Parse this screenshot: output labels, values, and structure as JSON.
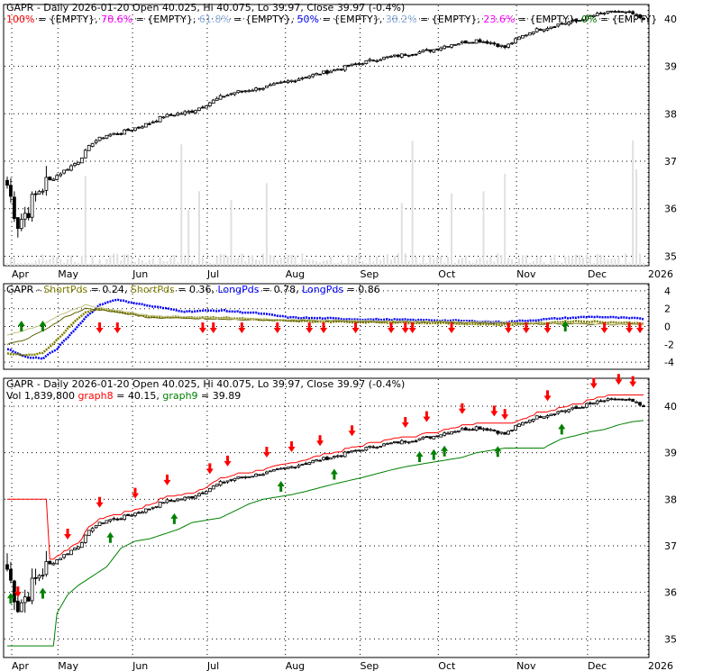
{
  "chart_data": [
    {
      "type": "candlestick",
      "panel": "price",
      "title_parts": [
        {
          "text": "GAPR - Daily 2026-01-20 Open 40.025, Hi 40.075, Lo 39.97, Close 39.97 (-0.4%)",
          "color": "#000000"
        }
      ],
      "fib_parts": [
        {
          "text": "100%",
          "color": "#ff0000"
        },
        {
          "text": " = {EMPTY}, ",
          "color": "#000000"
        },
        {
          "text": "78.6%",
          "color": "#ff00ff"
        },
        {
          "text": " = {EMPTY}, ",
          "color": "#000000"
        },
        {
          "text": "61.8%",
          "color": "#88aadd"
        },
        {
          "text": " = {EMPTY}, ",
          "color": "#000000"
        },
        {
          "text": "50%",
          "color": "#0000ff"
        },
        {
          "text": " = {EMPTY}, ",
          "color": "#000000"
        },
        {
          "text": "38.2%",
          "color": "#88aadd"
        },
        {
          "text": " = {EMPTY}, ",
          "color": "#000000"
        },
        {
          "text": "23.6%",
          "color": "#ff00ff"
        },
        {
          "text": " = {EMPTY}, ",
          "color": "#000000"
        },
        {
          "text": "0%",
          "color": "#008000"
        },
        {
          "text": " = {EMPTY}",
          "color": "#000000"
        }
      ],
      "yticks": [
        "35",
        "36",
        "37",
        "38",
        "39",
        "40"
      ],
      "ylim": [
        34.8,
        40.3
      ],
      "xticks": [
        "Apr",
        "May",
        "Jun",
        "Jul",
        "Aug",
        "Sep",
        "Oct",
        "Nov",
        "Dec",
        "2026"
      ],
      "close_keypoints": [
        [
          0,
          36.5
        ],
        [
          3,
          35.7
        ],
        [
          6,
          36.0
        ],
        [
          9,
          36.4
        ],
        [
          12,
          36.6
        ],
        [
          16,
          36.8
        ],
        [
          20,
          37.0
        ],
        [
          24,
          37.4
        ],
        [
          28,
          37.55
        ],
        [
          32,
          37.6
        ],
        [
          36,
          37.7
        ],
        [
          40,
          37.8
        ],
        [
          44,
          37.95
        ],
        [
          48,
          38.0
        ],
        [
          52,
          38.05
        ],
        [
          56,
          38.2
        ],
        [
          60,
          38.35
        ],
        [
          64,
          38.45
        ],
        [
          68,
          38.5
        ],
        [
          72,
          38.55
        ],
        [
          76,
          38.62
        ],
        [
          80,
          38.7
        ],
        [
          84,
          38.78
        ],
        [
          88,
          38.85
        ],
        [
          92,
          38.92
        ],
        [
          96,
          39.0
        ],
        [
          100,
          39.08
        ],
        [
          104,
          39.15
        ],
        [
          108,
          39.2
        ],
        [
          112,
          39.25
        ],
        [
          116,
          39.3
        ],
        [
          120,
          39.35
        ],
        [
          124,
          39.45
        ],
        [
          128,
          39.5
        ],
        [
          132,
          39.55
        ],
        [
          136,
          39.5
        ],
        [
          140,
          39.4
        ],
        [
          144,
          39.6
        ],
        [
          148,
          39.75
        ],
        [
          152,
          39.82
        ],
        [
          156,
          39.9
        ],
        [
          160,
          39.95
        ],
        [
          164,
          40.05
        ],
        [
          168,
          40.12
        ],
        [
          172,
          40.15
        ],
        [
          176,
          40.1
        ],
        [
          179,
          39.97
        ]
      ],
      "bars": 180
    },
    {
      "type": "line",
      "panel": "oscillator",
      "title_parts": [
        {
          "text": "GAPR",
          "color": "#000000"
        },
        {
          "text": " - ",
          "color": "#000000"
        },
        {
          "text": "ShortPds",
          "color": "#808000"
        },
        {
          "text": " = 0.24, ",
          "color": "#000000"
        },
        {
          "text": "ShortPds",
          "color": "#808000"
        },
        {
          "text": " = 0.36, ",
          "color": "#000000"
        },
        {
          "text": "LongPds",
          "color": "#0000ff"
        },
        {
          "text": " = 0.78, ",
          "color": "#000000"
        },
        {
          "text": "LongPds",
          "color": "#0000ff"
        },
        {
          "text": " = 0.86",
          "color": "#000000"
        }
      ],
      "yticks": [
        "-4",
        "-2",
        "0",
        "2",
        "4"
      ],
      "ylim": [
        -4.8,
        4.8
      ],
      "series": [
        {
          "values": [
            [
              0,
              -2.5
            ],
            [
              5,
              -3.4
            ],
            [
              10,
              -3.6
            ],
            [
              14,
              -2.5
            ],
            [
              18,
              -0.8
            ],
            [
              22,
              1.0
            ],
            [
              26,
              2.4
            ],
            [
              30,
              3.0
            ],
            [
              34,
              2.8
            ],
            [
              40,
              2.3
            ],
            [
              50,
              1.7
            ],
            [
              60,
              1.8
            ],
            [
              70,
              1.5
            ],
            [
              80,
              1.0
            ],
            [
              100,
              0.8
            ],
            [
              120,
              0.7
            ],
            [
              140,
              0.5
            ],
            [
              155,
              0.9
            ],
            [
              165,
              1.1
            ],
            [
              179,
              0.86
            ]
          ],
          "color": "#0000ff",
          "dotted": true
        },
        {
          "values": [
            [
              0,
              -3.0
            ],
            [
              5,
              -3.2
            ],
            [
              10,
              -3.0
            ],
            [
              14,
              -1.5
            ],
            [
              18,
              0.2
            ],
            [
              22,
              1.6
            ],
            [
              26,
              2.0
            ],
            [
              30,
              1.7
            ],
            [
              40,
              1.1
            ],
            [
              60,
              1.0
            ],
            [
              80,
              0.6
            ],
            [
              100,
              0.5
            ],
            [
              120,
              0.4
            ],
            [
              140,
              0.2
            ],
            [
              160,
              0.6
            ],
            [
              179,
              0.36
            ]
          ],
          "color": "#808000",
          "dotted": true
        },
        {
          "values": [
            [
              0,
              -2.0
            ],
            [
              5,
              -1.5
            ],
            [
              10,
              -0.5
            ],
            [
              16,
              1.0
            ],
            [
              22,
              2.0
            ],
            [
              28,
              1.8
            ],
            [
              40,
              1.0
            ],
            [
              60,
              0.8
            ],
            [
              90,
              0.6
            ],
            [
              120,
              0.5
            ],
            [
              150,
              0.3
            ],
            [
              179,
              0.24
            ]
          ],
          "color": "#606000",
          "dotted": false
        },
        {
          "values": [
            [
              0,
              -1.0
            ],
            [
              5,
              -0.4
            ],
            [
              10,
              0.2
            ],
            [
              16,
              1.5
            ],
            [
              22,
              2.4
            ],
            [
              28,
              2.0
            ],
            [
              40,
              1.2
            ],
            [
              60,
              0.9
            ],
            [
              90,
              0.7
            ],
            [
              120,
              0.6
            ],
            [
              150,
              0.4
            ],
            [
              179,
              0.24
            ]
          ],
          "color": "#c0c080",
          "dotted": false
        }
      ]
    },
    {
      "type": "candlestick",
      "panel": "price-with-stops",
      "title_parts": [
        {
          "text": "GAPR - Daily 2026-01-20 Open 40.025, Hi 40.075, Lo 39.97, Close 39.97 (-0.4%)",
          "color": "#000000"
        }
      ],
      "sub_parts": [
        {
          "text": "Vol 1,839,800 ",
          "color": "#000000"
        },
        {
          "text": "graph8",
          "color": "#ff0000"
        },
        {
          "text": " = 40.15, ",
          "color": "#000000"
        },
        {
          "text": "graph9",
          "color": "#008000"
        },
        {
          "text": " = 39.89",
          "color": "#000000"
        }
      ],
      "yticks": [
        "35",
        "36",
        "37",
        "38",
        "39",
        "40"
      ],
      "ylim": [
        34.6,
        40.6
      ],
      "xticks": [
        "Apr",
        "May",
        "Jun",
        "Jul",
        "Aug",
        "Sep",
        "Oct",
        "Nov",
        "Dec",
        "2026"
      ],
      "red_stop_color": "#ff0000",
      "green_stop_color": "#008000"
    }
  ]
}
